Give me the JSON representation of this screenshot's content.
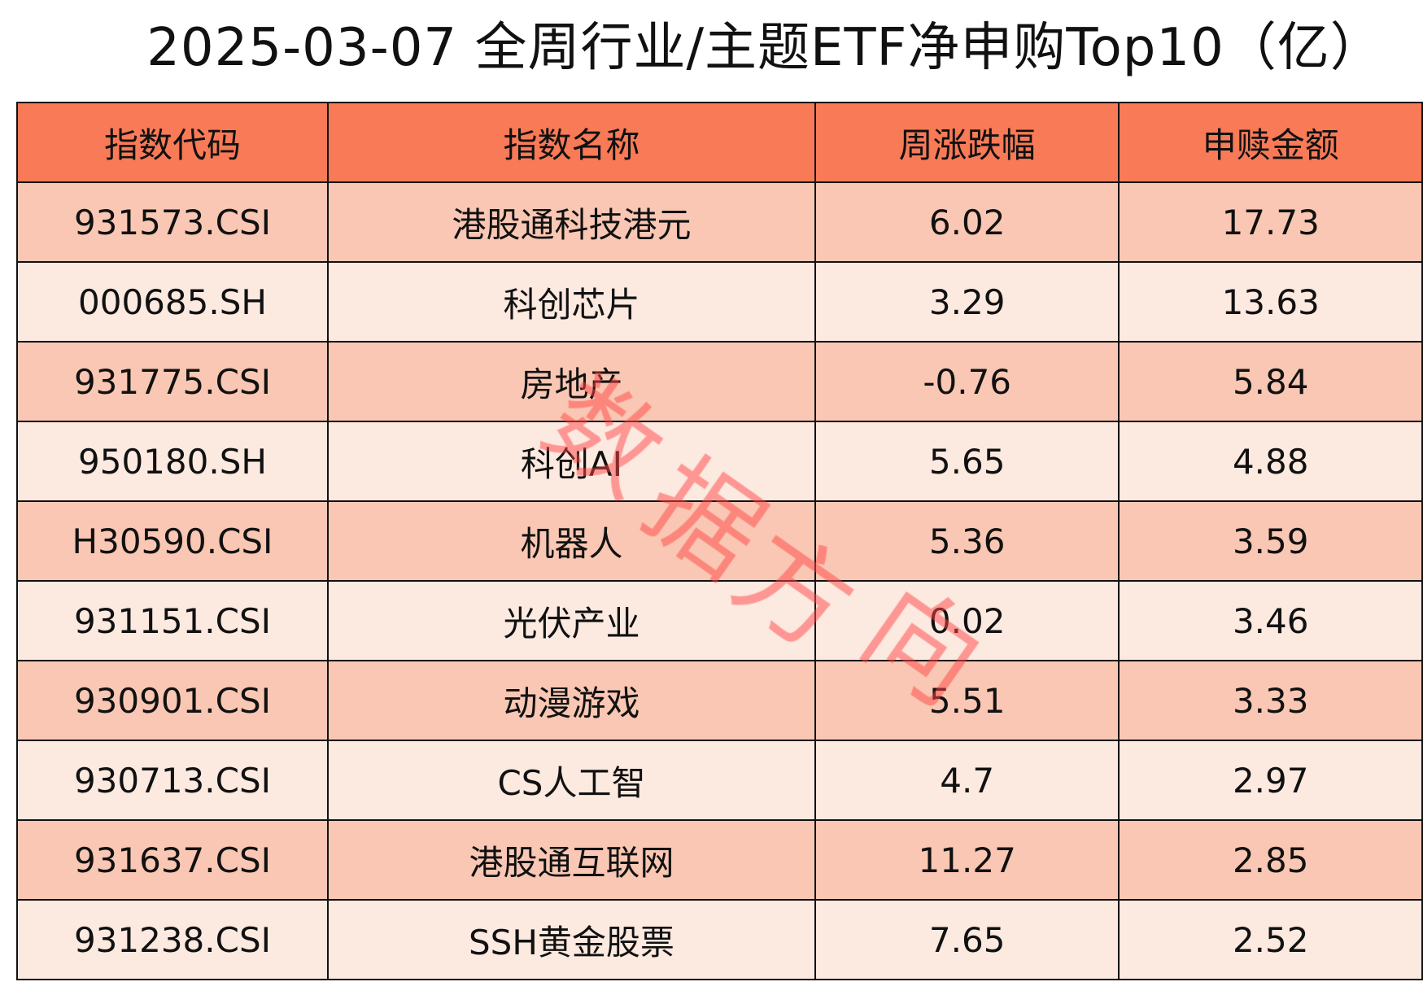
{
  "title": "2025-03-07 全周行业/主题ETF净申购Top10（亿）",
  "table": {
    "headers": [
      "指数代码",
      "指数名称",
      "周涨跌幅",
      "申赎金额"
    ],
    "rows": [
      {
        "code": "931573.CSI",
        "name": "港股通科技港元",
        "change": "6.02",
        "amount": "17.73"
      },
      {
        "code": "000685.SH",
        "name": "科创芯片",
        "change": "3.29",
        "amount": "13.63"
      },
      {
        "code": "931775.CSI",
        "name": "房地产",
        "change": "-0.76",
        "amount": "5.84"
      },
      {
        "code": "950180.SH",
        "name": "科创AI",
        "change": "5.65",
        "amount": "4.88"
      },
      {
        "code": "H30590.CSI",
        "name": "机器人",
        "change": "5.36",
        "amount": "3.59"
      },
      {
        "code": "931151.CSI",
        "name": "光伏产业",
        "change": "0.02",
        "amount": "3.46"
      },
      {
        "code": "930901.CSI",
        "name": "动漫游戏",
        "change": "5.51",
        "amount": "3.33"
      },
      {
        "code": "930713.CSI",
        "name": "CS人工智",
        "change": "4.7",
        "amount": "2.97"
      },
      {
        "code": "931637.CSI",
        "name": "港股通互联网",
        "change": "11.27",
        "amount": "2.85"
      },
      {
        "code": "931238.CSI",
        "name": "SSH黄金股票",
        "change": "7.65",
        "amount": "2.52"
      }
    ]
  },
  "watermark": {
    "chars": [
      "数",
      "据",
      "方",
      "向"
    ],
    "color": "#FF4646"
  },
  "colors": {
    "header_bg": "#F97A57",
    "row_odd_bg": "#F9C7B3",
    "row_even_bg": "#FCE9E0"
  }
}
